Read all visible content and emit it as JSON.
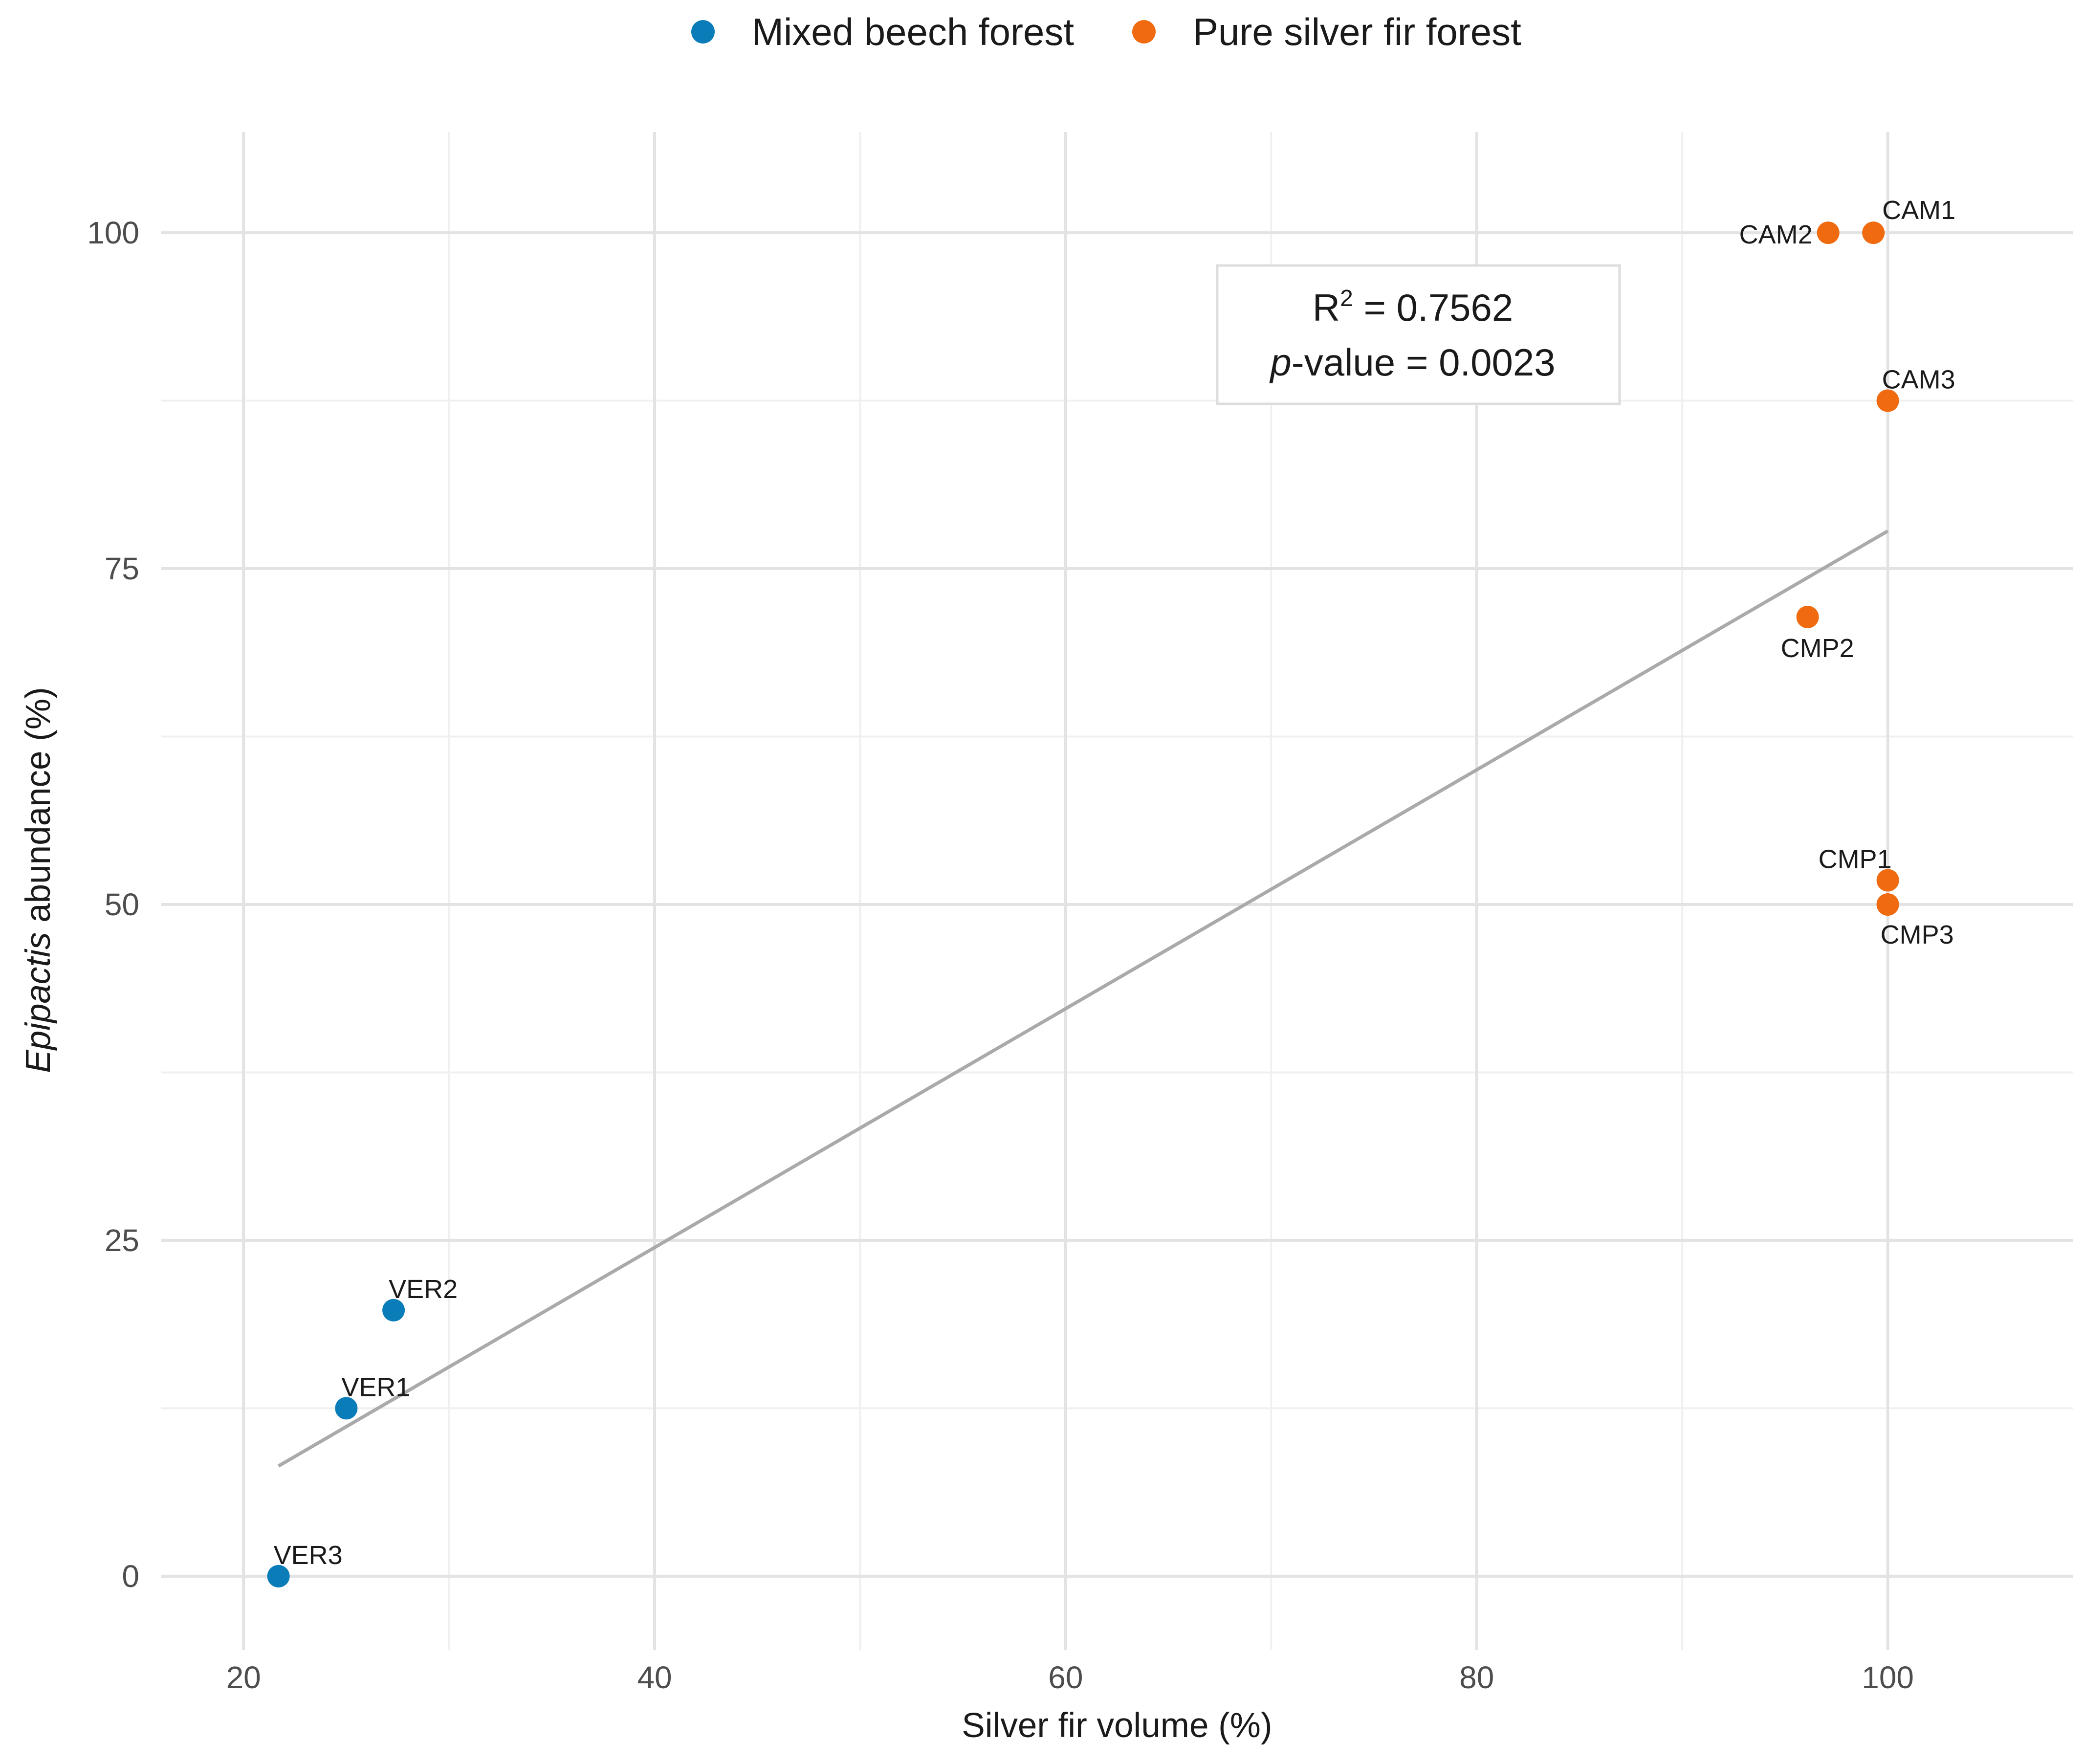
{
  "chart_data": {
    "type": "scatter",
    "title": "",
    "xlabel": "Silver fir volume (%)",
    "ylabel_italic": "Epipactis",
    "ylabel_rest": " abundance (%)",
    "xlim": [
      16,
      109
    ],
    "ylim": [
      -5.5,
      107.5
    ],
    "x_major_ticks": [
      20,
      40,
      60,
      80,
      100
    ],
    "x_minor_ticks": [
      30,
      50,
      70,
      90
    ],
    "y_major_ticks": [
      0,
      25,
      50,
      75,
      100
    ],
    "y_minor_ticks": [
      12.5,
      37.5,
      62.5,
      87.5
    ],
    "x_tick_labels": [
      "20",
      "40",
      "60",
      "80",
      "100"
    ],
    "y_tick_labels": [
      "0",
      "25",
      "50",
      "75",
      "100"
    ],
    "grid": true,
    "legend_position": "top",
    "series": [
      {
        "name": "Mixed beech forest",
        "color": "#0A7CB8",
        "points": [
          {
            "label": "VER1",
            "x": 25.0,
            "y": 12.5
          },
          {
            "label": "VER2",
            "x": 27.3,
            "y": 19.8
          },
          {
            "label": "VER3",
            "x": 21.7,
            "y": 0.0
          }
        ]
      },
      {
        "name": "Pure silver fir forest",
        "color": "#F06A0F",
        "points": [
          {
            "label": "CAM1",
            "x": 99.3,
            "y": 100.0
          },
          {
            "label": "CAM2",
            "x": 97.1,
            "y": 100.0
          },
          {
            "label": "CAM3",
            "x": 100.0,
            "y": 87.5
          },
          {
            "label": "CMP1",
            "x": 100.0,
            "y": 51.8
          },
          {
            "label": "CMP2",
            "x": 96.1,
            "y": 71.4
          },
          {
            "label": "CMP3",
            "x": 100.0,
            "y": 50.0
          }
        ]
      }
    ],
    "regression_line": {
      "color": "#AAAAAA",
      "x": [
        21.7,
        100.0
      ],
      "y": [
        8.2,
        77.8
      ]
    },
    "annotation": {
      "line1_prefix": "R",
      "line1_sup": "2",
      "line1_rest": " = 0.7562",
      "line2_italic": "p",
      "line2_rest": "-value = 0.0023"
    }
  }
}
